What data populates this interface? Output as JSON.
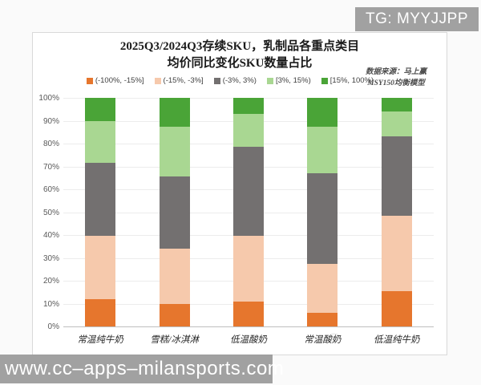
{
  "watermarks": {
    "telegram": "TG: MYYJJPP",
    "website": "www.cc–apps–milansports.com"
  },
  "chart_data": {
    "type": "bar",
    "stacked": true,
    "title_lines": [
      "2025Q3/2024Q3存续SKU，乳制品各重点类目",
      "均价同比变化SKU数量占比"
    ],
    "source_lines": [
      "数据来源：马上赢",
      "MSY150均衡模型"
    ],
    "categories": [
      "常温纯牛奶",
      "雪糕/冰淇淋",
      "低温酸奶",
      "常温酸奶",
      "低温纯牛奶"
    ],
    "series": [
      {
        "name": "(-100%, -15%]",
        "color": "#E6762D",
        "values": [
          12,
          10,
          11,
          6,
          15.5
        ]
      },
      {
        "name": "(-15%, -3%]",
        "color": "#F6C9AC",
        "values": [
          27.5,
          24,
          28.5,
          21.5,
          33
        ]
      },
      {
        "name": "(-3%, 3%)",
        "color": "#737070",
        "values": [
          32,
          31.5,
          39,
          39.5,
          34.5
        ]
      },
      {
        "name": "[3%, 15%)",
        "color": "#A9D792",
        "values": [
          18.5,
          22,
          14.5,
          20.5,
          11
        ]
      },
      {
        "name": "[15%, 100%)",
        "color": "#4AA437",
        "values": [
          10,
          12.5,
          7,
          12.5,
          6
        ]
      }
    ],
    "ylim": [
      0,
      100
    ],
    "ytick_step": 10,
    "ytick_suffix": "%",
    "legend_position": "top",
    "grid": "horizontal",
    "xlabel": "",
    "ylabel": ""
  }
}
